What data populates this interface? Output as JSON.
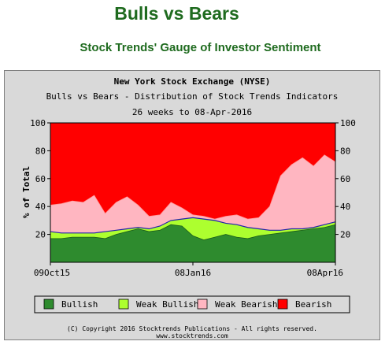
{
  "header": {
    "title": "Bulls vs Bears",
    "subtitle": "Stock Trends' Gauge of Investor Sentiment"
  },
  "chart_data": {
    "type": "area",
    "stacked": true,
    "title": "New York Stock Exchange (NYSE)",
    "subtitle": "Bulls vs Bears - Distribution of Stock Trends Indicators",
    "period": "26 weeks to 08-Apr-2016",
    "ylabel": "% of Total",
    "xlabel": "",
    "ylim": [
      0,
      100
    ],
    "yticks": [
      20,
      40,
      60,
      80,
      100
    ],
    "x_tick_labels": [
      {
        "label": "09Oct15",
        "index": 0
      },
      {
        "label": "08Jan16",
        "index": 13
      },
      {
        "label": "08Apr16",
        "index": 26
      }
    ],
    "x": [
      "2015-10-09",
      "2015-10-16",
      "2015-10-23",
      "2015-10-30",
      "2015-11-06",
      "2015-11-13",
      "2015-11-20",
      "2015-11-27",
      "2015-12-04",
      "2015-12-11",
      "2015-12-18",
      "2015-12-24",
      "2015-12-31",
      "2016-01-08",
      "2016-01-15",
      "2016-01-22",
      "2016-01-29",
      "2016-02-05",
      "2016-02-12",
      "2016-02-19",
      "2016-02-26",
      "2016-03-04",
      "2016-03-11",
      "2016-03-18",
      "2016-03-24",
      "2016-04-01",
      "2016-04-08"
    ],
    "series": [
      {
        "name": "Bullish",
        "color": "#2e8b2e",
        "values": [
          17,
          17,
          18,
          18,
          18,
          17,
          20,
          22,
          24,
          22,
          23,
          27,
          26,
          19,
          16,
          18,
          20,
          18,
          17,
          19,
          20,
          21,
          22,
          23,
          24,
          25,
          27
        ]
      },
      {
        "name": "Weak Bullish",
        "color": "#adff2f",
        "values": [
          5,
          4,
          3,
          3,
          3,
          5,
          3,
          2,
          1,
          2,
          3,
          3,
          5,
          13,
          15,
          12,
          8,
          9,
          8,
          5,
          3,
          2,
          2,
          1,
          1,
          2,
          2
        ]
      },
      {
        "name": "Weak Bearish",
        "color": "#ffb6c1",
        "values": [
          19,
          21,
          23,
          22,
          27,
          13,
          20,
          23,
          16,
          9,
          8,
          13,
          8,
          2,
          2,
          1,
          5,
          7,
          6,
          8,
          17,
          39,
          46,
          51,
          44,
          50,
          43
        ]
      },
      {
        "name": "Bearish",
        "color": "#ff0000",
        "values": [
          59,
          58,
          56,
          57,
          52,
          65,
          57,
          53,
          59,
          67,
          66,
          57,
          61,
          66,
          67,
          69,
          67,
          66,
          69,
          68,
          60,
          38,
          30,
          25,
          31,
          23,
          28
        ]
      }
    ],
    "legend_position": "bottom",
    "grid": false,
    "footer": "(C) Copyright 2016 Stocktrends Publications - All rights reserved.",
    "footer_url": "www.stocktrends.com"
  }
}
